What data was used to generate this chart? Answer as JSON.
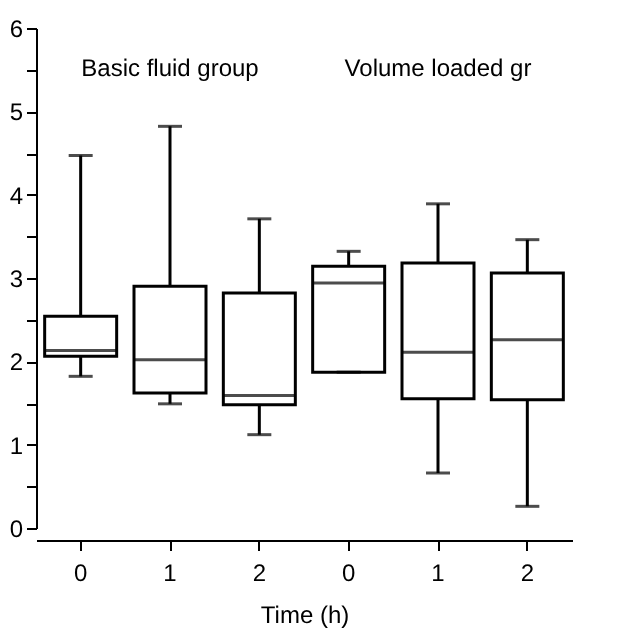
{
  "chart_data": {
    "type": "box",
    "xlabel": "Time (h)",
    "categories": [
      "0",
      "1",
      "2",
      "0",
      "1",
      "2"
    ],
    "boxes": [
      {
        "low": 1.82,
        "q1": 2.06,
        "median": 2.13,
        "q3": 2.54,
        "high": 4.47
      },
      {
        "low": 1.49,
        "q1": 1.62,
        "median": 2.02,
        "q3": 2.9,
        "high": 4.82
      },
      {
        "low": 1.12,
        "q1": 1.48,
        "median": 1.59,
        "q3": 2.82,
        "high": 3.71
      },
      {
        "low": 1.87,
        "q1": 1.87,
        "median": 2.94,
        "q3": 3.14,
        "high": 3.32
      },
      {
        "low": 0.66,
        "q1": 1.55,
        "median": 2.11,
        "q3": 3.18,
        "high": 3.89
      },
      {
        "low": 0.26,
        "q1": 1.54,
        "median": 2.26,
        "q3": 3.06,
        "high": 3.46
      }
    ],
    "annotations": [
      "Basic fluid group",
      "Volume loaded gr"
    ],
    "ylim": [
      0,
      6
    ],
    "yticks": [
      0,
      {
        "value": 0.5,
        "label": null
      },
      1,
      {
        "value": 1.5,
        "label": null
      },
      2,
      {
        "value": 2.5,
        "label": null
      },
      3,
      {
        "value": 3.5,
        "label": null
      },
      4,
      {
        "value": 4.5,
        "label": null
      },
      5,
      {
        "value": 5.5,
        "label": null
      },
      6
    ],
    "grid": false
  }
}
